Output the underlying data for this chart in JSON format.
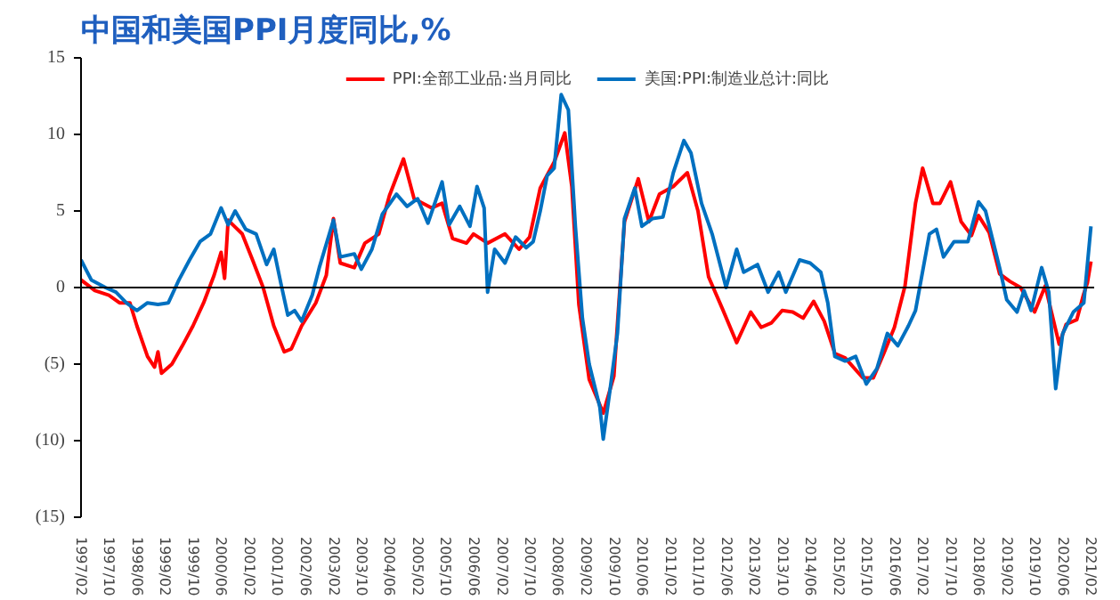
{
  "chart_data": {
    "type": "line",
    "title": "中国和美国PPI月度同比,%",
    "xlim": [
      "1997-02",
      "2021-03"
    ],
    "ylim": [
      -15,
      15
    ],
    "yticks": [
      15,
      10,
      5,
      0,
      {
        "value": -5,
        "label": "(5)"
      },
      {
        "value": -10,
        "label": "(10)"
      },
      {
        "value": -15,
        "label": "(15)"
      }
    ],
    "xticks": [
      {
        "value": "1997-02",
        "label": "1997/02"
      },
      {
        "value": "1997-10",
        "label": "1997/10"
      },
      {
        "value": "1998-06",
        "label": "1998/06"
      },
      {
        "value": "1999-02",
        "label": "1999/02"
      },
      {
        "value": "1999-10",
        "label": "1999/10"
      },
      {
        "value": "2000-06",
        "label": "2000/06"
      },
      {
        "value": "2001-02",
        "label": "2001/02"
      },
      {
        "value": "2001-10",
        "label": "2001/10"
      },
      {
        "value": "2002-06",
        "label": "2002/06"
      },
      {
        "value": "2003-02",
        "label": "2003/02"
      },
      {
        "value": "2003-10",
        "label": "2003/10"
      },
      {
        "value": "2004-06",
        "label": "2004/06"
      },
      {
        "value": "2005-02",
        "label": "2005/02"
      },
      {
        "value": "2005-10",
        "label": "2005/10"
      },
      {
        "value": "2006-06",
        "label": "2006/06"
      },
      {
        "value": "2007-02",
        "label": "2007/02"
      },
      {
        "value": "2007-10",
        "label": "2007/10"
      },
      {
        "value": "2008-06",
        "label": "2008/06"
      },
      {
        "value": "2009-02",
        "label": "2009/02"
      },
      {
        "value": "2009-10",
        "label": "2009/10"
      },
      {
        "value": "2010-06",
        "label": "2010/06"
      },
      {
        "value": "2011-02",
        "label": "2011/02"
      },
      {
        "value": "2011-10",
        "label": "2011/10"
      },
      {
        "value": "2012-06",
        "label": "2012/06"
      },
      {
        "value": "2013-02",
        "label": "2013/02"
      },
      {
        "value": "2013-10",
        "label": "2013/10"
      },
      {
        "value": "2014-06",
        "label": "2014/06"
      },
      {
        "value": "2015-02",
        "label": "2015/02"
      },
      {
        "value": "2015-10",
        "label": "2015/10"
      },
      {
        "value": "2016-06",
        "label": "2016/06"
      },
      {
        "value": "2017-02",
        "label": "2017/02"
      },
      {
        "value": "2017-10",
        "label": "2017/10"
      },
      {
        "value": "2018-06",
        "label": "2018/06"
      },
      {
        "value": "2019-02",
        "label": "2019/02"
      },
      {
        "value": "2019-10",
        "label": "2019/10"
      },
      {
        "value": "2020-06",
        "label": "2020/06"
      },
      {
        "value": "2021-02",
        "label": "2021/02"
      }
    ],
    "grid": false,
    "legend": "top",
    "line_style": "solid",
    "ref_lines": [
      {
        "axis": "y",
        "value": 0,
        "color": "#000000"
      }
    ],
    "series": [
      {
        "name": "PPI:全部工业品:当月同比",
        "color": "#ff0000",
        "x": [
          "1997-02",
          "1997-06",
          "1997-10",
          "1998-01",
          "1998-04",
          "1998-06",
          "1998-09",
          "1998-11",
          "1998-12",
          "1999-01",
          "1999-04",
          "1999-07",
          "1999-10",
          "2000-01",
          "2000-04",
          "2000-06",
          "2000-07",
          "2000-08",
          "2000-12",
          "2001-03",
          "2001-06",
          "2001-09",
          "2001-12",
          "2002-02",
          "2002-05",
          "2002-09",
          "2002-12",
          "2003-02",
          "2003-04",
          "2003-08",
          "2003-11",
          "2004-03",
          "2004-06",
          "2004-10",
          "2005-01",
          "2005-06",
          "2005-09",
          "2005-12",
          "2006-04",
          "2006-06",
          "2006-10",
          "2007-03",
          "2007-07",
          "2007-10",
          "2008-01",
          "2008-05",
          "2008-08",
          "2008-10",
          "2008-12",
          "2009-03",
          "2009-07",
          "2009-10",
          "2010-01",
          "2010-05",
          "2010-08",
          "2010-11",
          "2011-03",
          "2011-07",
          "2011-10",
          "2012-01",
          "2012-05",
          "2012-09",
          "2013-01",
          "2013-04",
          "2013-07",
          "2013-10",
          "2014-01",
          "2014-04",
          "2014-07",
          "2014-10",
          "2015-01",
          "2015-04",
          "2015-09",
          "2015-12",
          "2016-03",
          "2016-06",
          "2016-09",
          "2016-12",
          "2017-02",
          "2017-05",
          "2017-07",
          "2017-10",
          "2018-01",
          "2018-04",
          "2018-06",
          "2018-09",
          "2018-12",
          "2019-03",
          "2019-06",
          "2019-10",
          "2020-01",
          "2020-05",
          "2020-07",
          "2020-10",
          "2020-12",
          "2021-01",
          "2021-02"
        ],
        "values": [
          0.5,
          -0.2,
          -0.5,
          -1.0,
          -1.0,
          -2.5,
          -4.5,
          -5.2,
          -4.2,
          -5.6,
          -5.0,
          -3.8,
          -2.5,
          -1.0,
          0.8,
          2.3,
          0.6,
          4.4,
          3.5,
          1.8,
          0.0,
          -2.5,
          -4.2,
          -4.0,
          -2.5,
          -1.0,
          0.8,
          4.5,
          1.6,
          1.3,
          2.9,
          3.5,
          6.0,
          8.4,
          5.8,
          5.2,
          5.5,
          3.2,
          2.9,
          3.5,
          2.9,
          3.5,
          2.5,
          3.3,
          6.5,
          8.2,
          10.1,
          6.6,
          -1.1,
          -6.0,
          -8.2,
          -5.8,
          4.3,
          7.1,
          4.3,
          6.1,
          6.6,
          7.5,
          5.0,
          0.7,
          -1.4,
          -3.6,
          -1.6,
          -2.6,
          -2.3,
          -1.5,
          -1.6,
          -2.0,
          -0.9,
          -2.2,
          -4.3,
          -4.6,
          -5.9,
          -5.9,
          -4.3,
          -2.6,
          0.1,
          5.5,
          7.8,
          5.5,
          5.5,
          6.9,
          4.3,
          3.4,
          4.7,
          3.6,
          0.9,
          0.4,
          0.0,
          -1.6,
          0.1,
          -3.7,
          -2.4,
          -2.1,
          -0.4,
          0.3,
          1.7
        ]
      },
      {
        "name": "美国:PPI:制造业总计:同比",
        "color": "#0070c0",
        "x": [
          "1997-02",
          "1997-05",
          "1997-09",
          "1997-12",
          "1998-03",
          "1998-06",
          "1998-09",
          "1998-12",
          "1999-03",
          "1999-06",
          "1999-09",
          "1999-12",
          "2000-03",
          "2000-06",
          "2000-08",
          "2000-10",
          "2001-01",
          "2001-04",
          "2001-07",
          "2001-09",
          "2001-11",
          "2002-01",
          "2002-03",
          "2002-05",
          "2002-08",
          "2002-10",
          "2003-02",
          "2003-04",
          "2003-08",
          "2003-10",
          "2004-01",
          "2004-04",
          "2004-08",
          "2004-11",
          "2005-02",
          "2005-05",
          "2005-09",
          "2005-11",
          "2006-02",
          "2006-05",
          "2006-07",
          "2006-09",
          "2006-10",
          "2006-12",
          "2007-03",
          "2007-06",
          "2007-09",
          "2007-11",
          "2008-01",
          "2008-03",
          "2008-05",
          "2008-07",
          "2008-09",
          "2008-11",
          "2009-01",
          "2009-03",
          "2009-06",
          "2009-07",
          "2009-09",
          "2009-11",
          "2010-01",
          "2010-04",
          "2010-06",
          "2010-09",
          "2010-12",
          "2011-03",
          "2011-06",
          "2011-08",
          "2011-11",
          "2012-02",
          "2012-06",
          "2012-09",
          "2012-11",
          "2013-03",
          "2013-06",
          "2013-09",
          "2013-11",
          "2014-03",
          "2014-06",
          "2014-09",
          "2014-11",
          "2015-01",
          "2015-04",
          "2015-07",
          "2015-10",
          "2016-01",
          "2016-04",
          "2016-07",
          "2016-10",
          "2016-12",
          "2017-04",
          "2017-06",
          "2017-08",
          "2017-11",
          "2018-03",
          "2018-06",
          "2018-08",
          "2018-12",
          "2019-02",
          "2019-05",
          "2019-07",
          "2019-09",
          "2019-12",
          "2020-02",
          "2020-04",
          "2020-06",
          "2020-09",
          "2020-12",
          "2021-02"
        ],
        "values": [
          1.8,
          0.5,
          0.0,
          -0.3,
          -1.0,
          -1.5,
          -1.0,
          -1.1,
          -1.0,
          0.5,
          1.8,
          3.0,
          3.5,
          5.2,
          4.1,
          5.0,
          3.8,
          3.5,
          1.5,
          2.5,
          0.3,
          -1.8,
          -1.5,
          -2.2,
          -0.5,
          1.3,
          4.4,
          2.0,
          2.2,
          1.2,
          2.5,
          4.8,
          6.1,
          5.3,
          5.8,
          4.2,
          6.9,
          4.1,
          5.3,
          4.0,
          6.6,
          5.2,
          -0.3,
          2.5,
          1.6,
          3.3,
          2.6,
          3.0,
          5.0,
          7.3,
          7.8,
          12.6,
          11.6,
          4.0,
          -2.0,
          -5.0,
          -7.8,
          -9.9,
          -6.5,
          -3.0,
          4.5,
          6.5,
          4.0,
          4.5,
          4.6,
          7.5,
          9.6,
          8.8,
          5.5,
          3.5,
          0.0,
          2.5,
          1.0,
          1.5,
          -0.3,
          1.0,
          -0.3,
          1.8,
          1.6,
          1.0,
          -1.0,
          -4.5,
          -4.8,
          -4.5,
          -6.3,
          -5.3,
          -3.0,
          -3.8,
          -2.5,
          -1.5,
          3.5,
          3.8,
          2.0,
          3.0,
          3.0,
          5.6,
          5.0,
          1.3,
          -0.8,
          -1.6,
          -0.2,
          -1.5,
          1.3,
          -0.3,
          -6.6,
          -3.0,
          -1.6,
          -1.0,
          4.0
        ]
      }
    ]
  }
}
